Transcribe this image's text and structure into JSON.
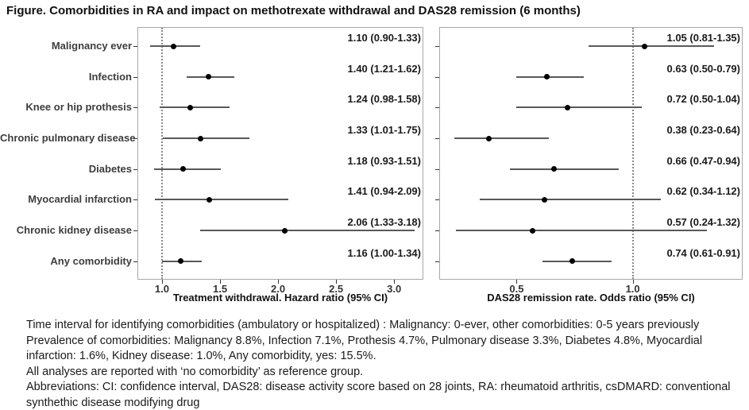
{
  "title": "Figure. Comorbidities in RA and impact on methotrexate withdrawal and DAS28 remission (6 months)",
  "chart_data": {
    "type": "forest",
    "categories": [
      "Malignancy ever",
      "Infection",
      "Knee or hip prothesis",
      "Chronic pulmonary disease",
      "Diabetes",
      "Myocardial infarction",
      "Chronic kidney disease",
      "Any comorbidity"
    ],
    "panels": [
      {
        "id": "treatment-withdrawal",
        "xlabel": "Treatment withdrawal. Hazard ratio (95% CI)",
        "xlim": [
          0.795,
          3.245
        ],
        "ticks": [
          1.0,
          1.5,
          2.0,
          2.5,
          3.0
        ],
        "tick_labels": [
          "1.0",
          "1.5",
          "2.0",
          "2.5",
          "3.0"
        ],
        "ref_line": 1.0,
        "estimates": [
          {
            "est": 1.1,
            "lo": 0.9,
            "hi": 1.33,
            "label": "1.10 (0.90-1.33)"
          },
          {
            "est": 1.4,
            "lo": 1.21,
            "hi": 1.62,
            "label": "1.40 (1.21-1.62)"
          },
          {
            "est": 1.24,
            "lo": 0.98,
            "hi": 1.58,
            "label": "1.24 (0.98-1.58)"
          },
          {
            "est": 1.33,
            "lo": 1.01,
            "hi": 1.75,
            "label": "1.33 (1.01-1.75)"
          },
          {
            "est": 1.18,
            "lo": 0.93,
            "hi": 1.51,
            "label": "1.18 (0.93-1.51)"
          },
          {
            "est": 1.41,
            "lo": 0.94,
            "hi": 2.09,
            "label": "1.41 (0.94-2.09)"
          },
          {
            "est": 2.06,
            "lo": 1.33,
            "hi": 3.18,
            "label": "2.06 (1.33-3.18)"
          },
          {
            "est": 1.16,
            "lo": 1.0,
            "hi": 1.34,
            "label": "1.16 (1.00-1.34)"
          }
        ]
      },
      {
        "id": "das28-remission",
        "xlabel": "DAS28 remission rate. Odds ratio (95% CI)",
        "xlim": [
          0.17,
          1.47
        ],
        "ticks": [
          0.5,
          1.0
        ],
        "tick_labels": [
          "0.5",
          "1.0"
        ],
        "ref_line": 1.0,
        "estimates": [
          {
            "est": 1.05,
            "lo": 0.81,
            "hi": 1.35,
            "label": "1.05 (0.81-1.35)"
          },
          {
            "est": 0.63,
            "lo": 0.5,
            "hi": 0.79,
            "label": "0.63 (0.50-0.79)"
          },
          {
            "est": 0.72,
            "lo": 0.5,
            "hi": 1.04,
            "label": "0.72 (0.50-1.04)"
          },
          {
            "est": 0.38,
            "lo": 0.23,
            "hi": 0.64,
            "label": "0.38 (0.23-0.64)"
          },
          {
            "est": 0.66,
            "lo": 0.47,
            "hi": 0.94,
            "label": "0.66 (0.47-0.94)"
          },
          {
            "est": 0.62,
            "lo": 0.34,
            "hi": 1.12,
            "label": "0.62 (0.34-1.12)"
          },
          {
            "est": 0.57,
            "lo": 0.24,
            "hi": 1.32,
            "label": "0.57 (0.24-1.32)"
          },
          {
            "est": 0.74,
            "lo": 0.61,
            "hi": 0.91,
            "label": "0.74 (0.61-0.91)"
          }
        ]
      }
    ],
    "legend_position": "none",
    "grid": false
  },
  "footnotes": [
    "Time interval for identifying comorbidities (ambulatory or hospitalized) : Malignancy: 0-ever, other comorbidities: 0-5 years previously",
    "Prevalence of comorbidities: Malignancy 8.8%, Infection 7.1%, Prothesis 4.7%, Pulmonary disease 3.3%, Diabetes 4.8%, Myocardial",
    "infarction: 1.6%, Kidney disease: 1.0%, Any comorbidity, yes: 15.5%.",
    "All analyses are reported with ‘no comorbidity’ as reference group.",
    "Abbreviations: CI: confidence interval, DAS28: disease activity score based on 28 joints, RA: rheumatoid arthritis, csDMARD: conventional",
    "synthethic disease modifying drug"
  ],
  "colors": {
    "dot": "#000000",
    "ci_line": "#595959",
    "ref_line": "#8a8a8a",
    "panel_border": "#a8a8a8",
    "category_label": "#3d3d3d",
    "text": "#1a1a1a"
  }
}
